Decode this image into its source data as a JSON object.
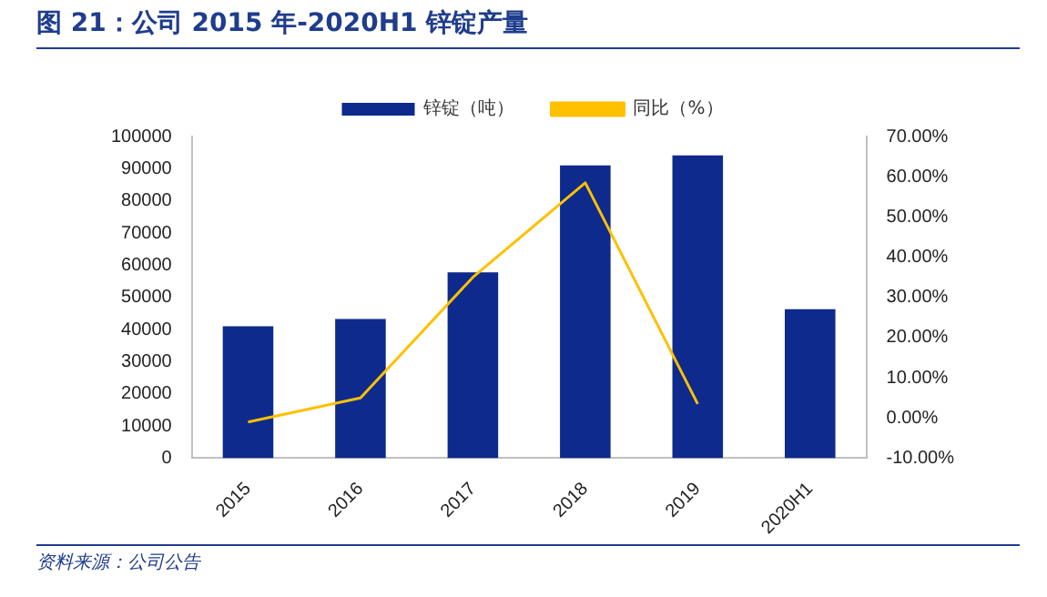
{
  "chart_data": {
    "type": "bar",
    "title": "图 21：公司 2015 年-2020H1 锌锭产量",
    "categories": [
      "2015",
      "2016",
      "2017",
      "2018",
      "2019",
      "2020H1"
    ],
    "series": [
      {
        "name": "锌锭（吨）",
        "color": "#0d2a8c",
        "values": [
          41000,
          43300,
          57800,
          91000,
          94100,
          46300
        ]
      },
      {
        "name": "同比（%）",
        "type": "line",
        "axis": "y2",
        "color": "#ffc000",
        "values": [
          -1,
          5,
          35,
          58.5,
          3.5,
          null
        ]
      }
    ],
    "ylim": [
      0,
      100000
    ],
    "yticks": [
      0,
      10000,
      20000,
      30000,
      40000,
      50000,
      60000,
      70000,
      80000,
      90000,
      100000
    ],
    "y2lim": [
      -10,
      70
    ],
    "y2ticks": [
      {
        "value": -10,
        "label": "-10.00%"
      },
      {
        "value": 0,
        "label": "0.00%"
      },
      {
        "value": 10,
        "label": "10.00%"
      },
      {
        "value": 20,
        "label": "20.00%"
      },
      {
        "value": 30,
        "label": "30.00%"
      },
      {
        "value": 40,
        "label": "40.00%"
      },
      {
        "value": 50,
        "label": "50.00%"
      },
      {
        "value": 60,
        "label": "60.00%"
      },
      {
        "value": 70,
        "label": "70.00%"
      }
    ],
    "legend": "top",
    "grid": false,
    "marker": "none",
    "annotations": [
      "资料来源：公司公告"
    ]
  }
}
